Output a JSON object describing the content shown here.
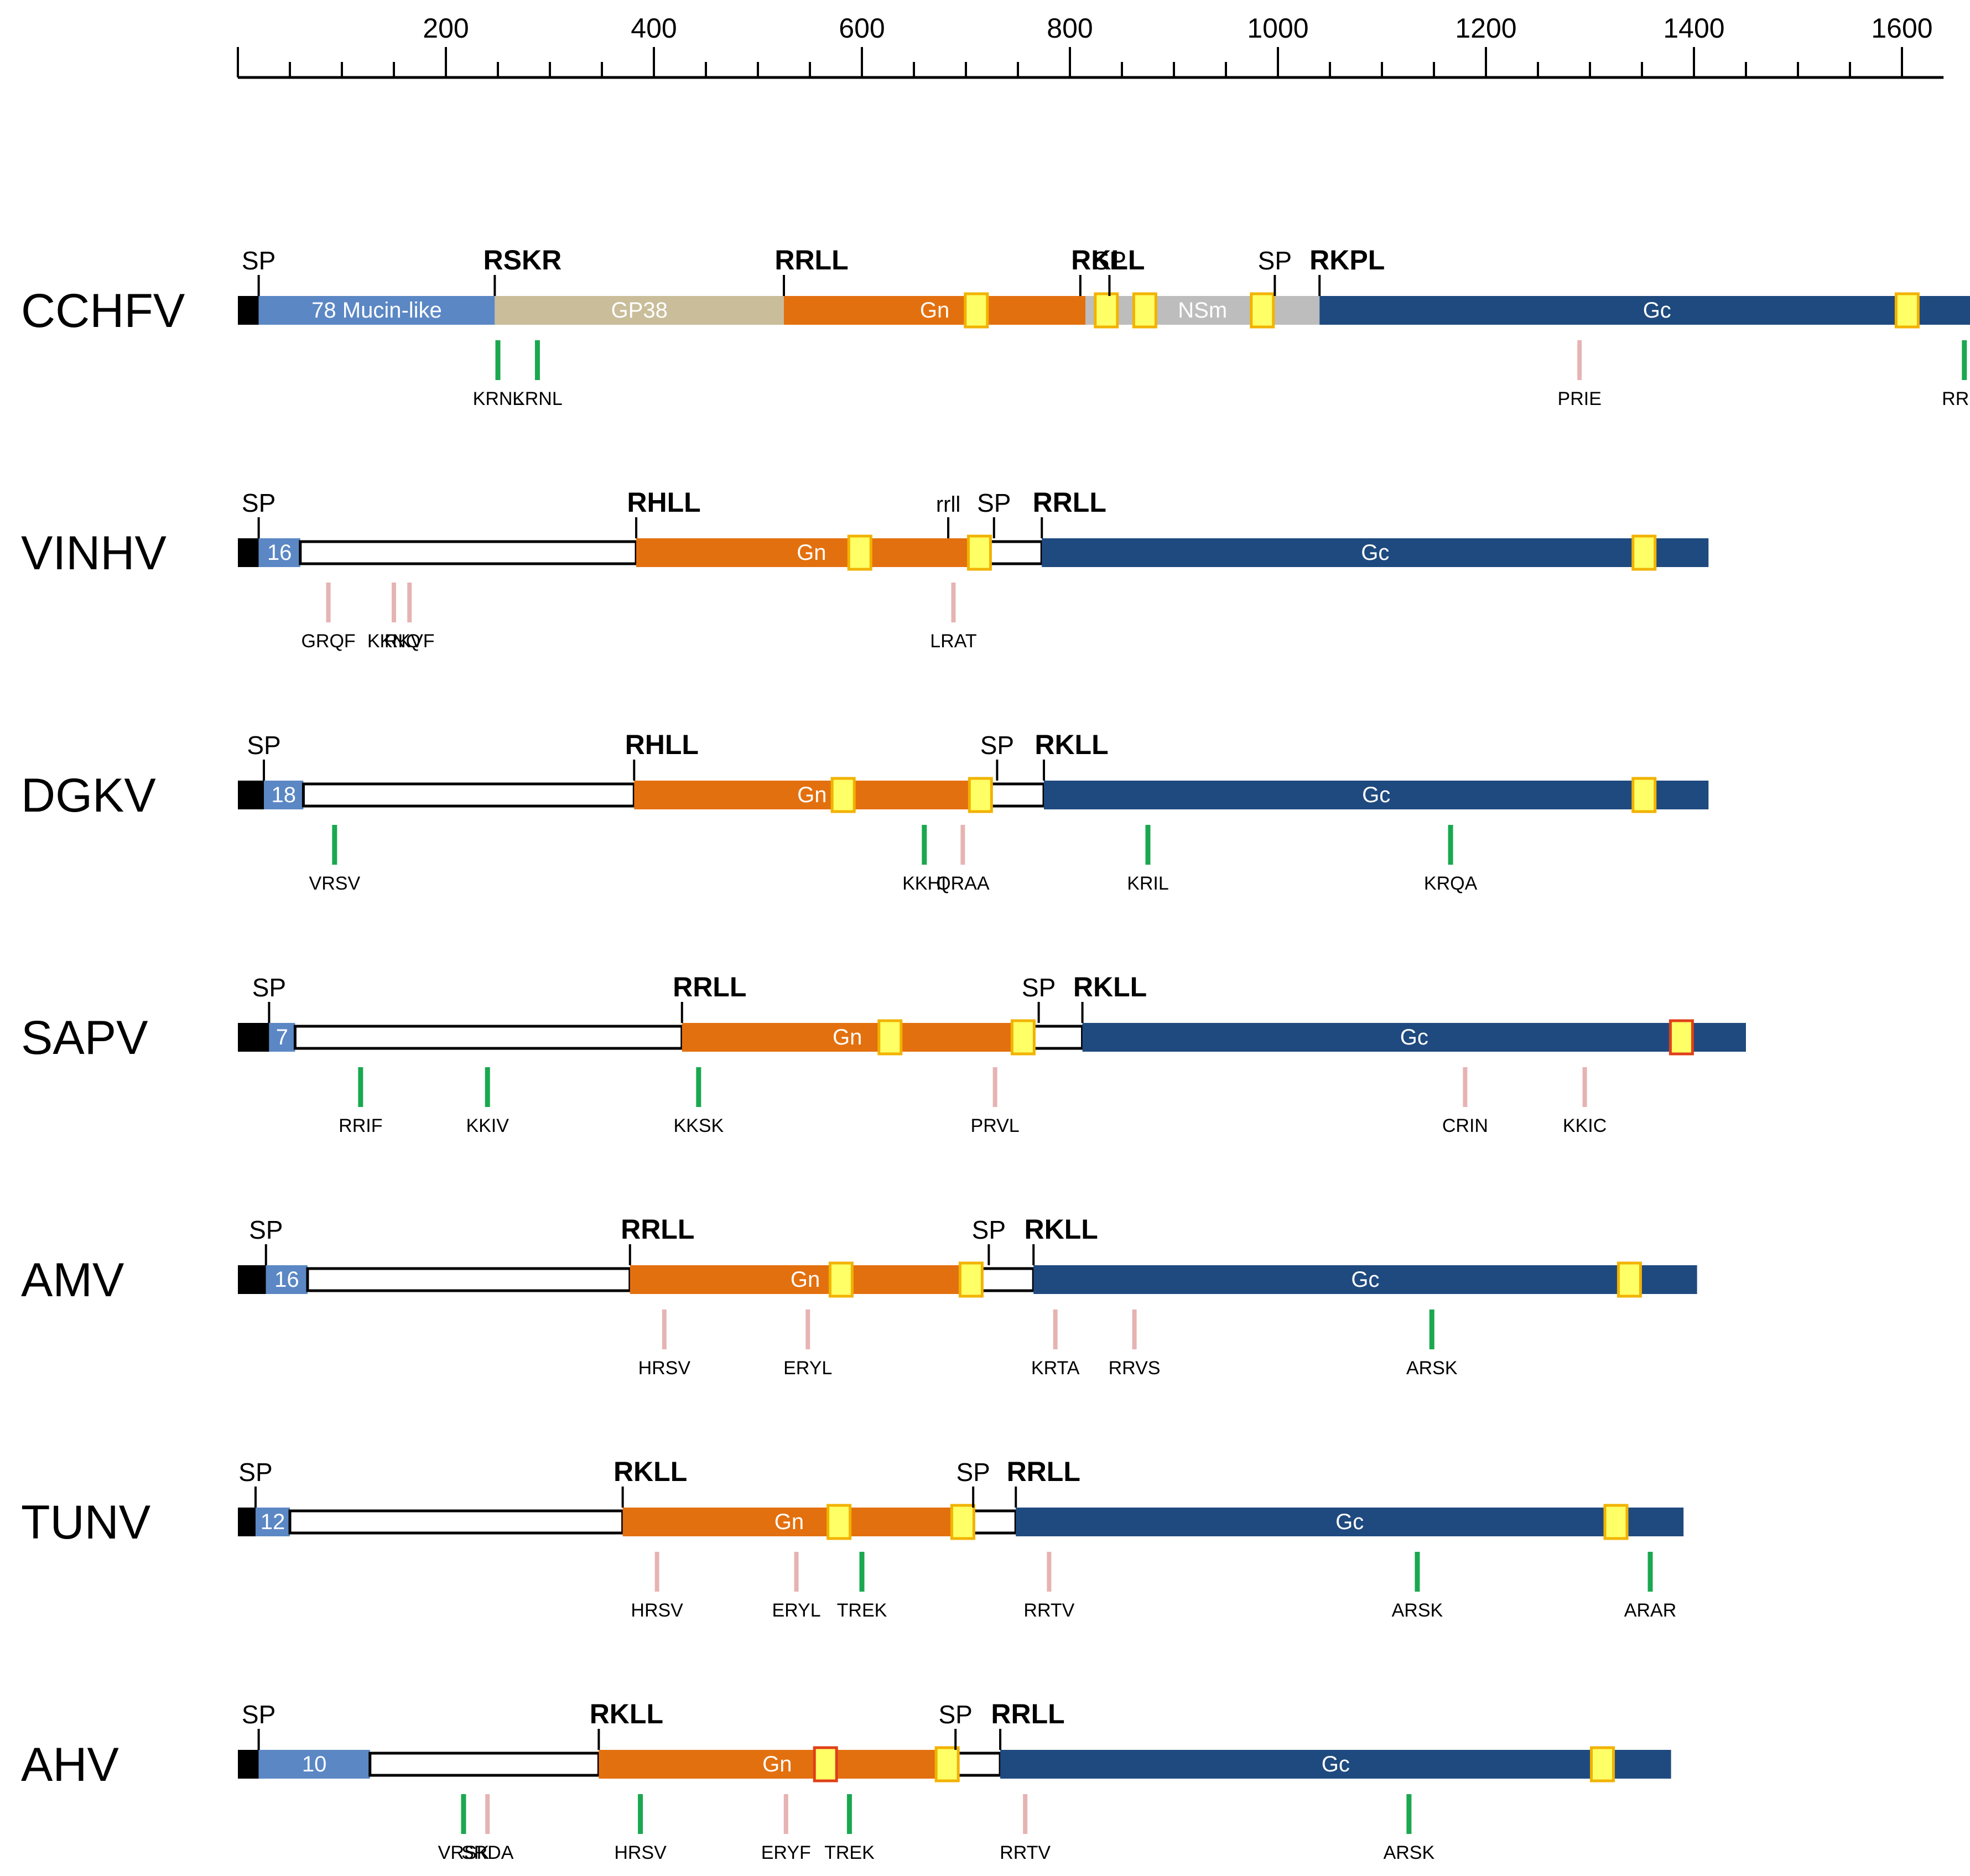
{
  "colors": {
    "sp_block": "#000000",
    "mucin": "#5b87c4",
    "gp38": "#c9bd9a",
    "gn": "#e3700f",
    "nsm": "#bdbdbd",
    "gc": "#1f4a7f",
    "tm_fill": "#ffff66",
    "tm_stroke": "#f2b200",
    "tm_stroke_alt": "#e0401a",
    "motif_green": "#1aa84f",
    "motif_pink": "#e6b3b3",
    "outline": "#000000"
  },
  "ruler": {
    "min": 0,
    "max": 1640,
    "tick_labels": [
      "200",
      "400",
      "600",
      "800",
      "1000",
      "1200",
      "1400",
      "1600"
    ],
    "tick_values": [
      200,
      400,
      600,
      800,
      1000,
      1200,
      1400,
      1600
    ],
    "minor_values": [
      50,
      100,
      150,
      250,
      300,
      350,
      450,
      500,
      550,
      650,
      700,
      750,
      850,
      900,
      950,
      1050,
      1100,
      1150,
      1250,
      1300,
      1350,
      1450,
      1500,
      1550
    ]
  },
  "viruses": [
    {
      "name": "CCHFV",
      "length": 1689,
      "segments": [
        {
          "type": "sp_block",
          "start": 0,
          "end": 20
        },
        {
          "type": "mucin",
          "start": 20,
          "end": 247,
          "label": "78 Mucin-like"
        },
        {
          "type": "gp38",
          "start": 247,
          "end": 525,
          "label": "GP38"
        },
        {
          "type": "gn",
          "start": 525,
          "end": 815,
          "label": "Gn"
        },
        {
          "type": "nsm",
          "start": 815,
          "end": 1040,
          "label": "NSm"
        },
        {
          "type": "gc",
          "start": 1040,
          "end": 1689,
          "label": "Gc"
        }
      ],
      "tm": [
        {
          "pos": 710,
          "style": "tm_stroke"
        },
        {
          "pos": 835,
          "style": "tm_stroke"
        },
        {
          "pos": 872,
          "style": "tm_stroke"
        },
        {
          "pos": 985,
          "style": "tm_stroke"
        },
        {
          "pos": 1605,
          "style": "tm_stroke"
        }
      ],
      "sites": [
        {
          "label": "SP",
          "pos": 20,
          "weight": "plain"
        },
        {
          "label": "RSKR",
          "pos": 247,
          "weight": "bold"
        },
        {
          "label": "RRLL",
          "pos": 525,
          "weight": "bold"
        },
        {
          "label": "RKLL",
          "pos": 810,
          "weight": "bold"
        },
        {
          "label": "SP",
          "pos": 838,
          "weight": "plain"
        },
        {
          "label": "SP",
          "pos": 997,
          "weight": "plain"
        },
        {
          "label": "RKPL",
          "pos": 1040,
          "weight": "bold"
        }
      ],
      "motifs": [
        {
          "label": "KRNL",
          "pos": 250,
          "color": "motif_green"
        },
        {
          "label": "KRNL",
          "pos": 288,
          "color": "motif_green"
        },
        {
          "label": "PRIE",
          "pos": 1290,
          "color": "motif_pink"
        },
        {
          "label": "RRIA",
          "pos": 1660,
          "color": "motif_green"
        }
      ]
    },
    {
      "name": "VINHV",
      "length": 1414,
      "segments": [
        {
          "type": "sp_block",
          "start": 0,
          "end": 20
        },
        {
          "type": "mucin",
          "start": 20,
          "end": 60,
          "label": "16"
        },
        {
          "type": "empty",
          "start": 60,
          "end": 383
        },
        {
          "type": "gn",
          "start": 383,
          "end": 720,
          "label": "Gn"
        },
        {
          "type": "empty",
          "start": 720,
          "end": 773
        },
        {
          "type": "gc",
          "start": 773,
          "end": 1414,
          "label": "Gc"
        }
      ],
      "tm": [
        {
          "pos": 598,
          "style": "tm_stroke"
        },
        {
          "pos": 713,
          "style": "tm_stroke"
        },
        {
          "pos": 1352,
          "style": "tm_stroke"
        }
      ],
      "sites": [
        {
          "label": "SP",
          "pos": 20,
          "weight": "plain"
        },
        {
          "label": "RHLL",
          "pos": 383,
          "weight": "bold"
        },
        {
          "label": "rrll",
          "pos": 683,
          "weight": "small"
        },
        {
          "label": "SP",
          "pos": 727,
          "weight": "plain"
        },
        {
          "label": "RRLL",
          "pos": 773,
          "weight": "bold"
        }
      ],
      "motifs": [
        {
          "label": "GRQF",
          "pos": 87,
          "color": "motif_pink"
        },
        {
          "label": "KKNQ",
          "pos": 150,
          "color": "motif_pink"
        },
        {
          "label": "RKVF",
          "pos": 165,
          "color": "motif_pink"
        },
        {
          "label": "LRAT",
          "pos": 688,
          "color": "motif_pink"
        }
      ]
    },
    {
      "name": "DGKV",
      "length": 1414,
      "segments": [
        {
          "type": "sp_block",
          "start": 0,
          "end": 25
        },
        {
          "type": "mucin",
          "start": 25,
          "end": 63,
          "label": "18"
        },
        {
          "type": "empty",
          "start": 63,
          "end": 381
        },
        {
          "type": "gn",
          "start": 381,
          "end": 723,
          "label": "Gn"
        },
        {
          "type": "empty",
          "start": 723,
          "end": 775
        },
        {
          "type": "gc",
          "start": 775,
          "end": 1414,
          "label": "Gc"
        }
      ],
      "tm": [
        {
          "pos": 582,
          "style": "tm_stroke"
        },
        {
          "pos": 714,
          "style": "tm_stroke"
        },
        {
          "pos": 1352,
          "style": "tm_stroke"
        }
      ],
      "sites": [
        {
          "label": "SP",
          "pos": 25,
          "weight": "plain"
        },
        {
          "label": "RHLL",
          "pos": 381,
          "weight": "bold"
        },
        {
          "label": "SP",
          "pos": 730,
          "weight": "plain"
        },
        {
          "label": "RKLL",
          "pos": 775,
          "weight": "bold"
        }
      ],
      "motifs": [
        {
          "label": "VRSV",
          "pos": 93,
          "color": "motif_green"
        },
        {
          "label": "KKHI",
          "pos": 660,
          "color": "motif_green"
        },
        {
          "label": "QRAA",
          "pos": 697,
          "color": "motif_pink"
        },
        {
          "label": "KRIL",
          "pos": 875,
          "color": "motif_green"
        },
        {
          "label": "KRQA",
          "pos": 1166,
          "color": "motif_green"
        }
      ]
    },
    {
      "name": "SAPV",
      "length": 1450,
      "segments": [
        {
          "type": "sp_block",
          "start": 0,
          "end": 30
        },
        {
          "type": "mucin",
          "start": 30,
          "end": 55,
          "label": "7"
        },
        {
          "type": "empty",
          "start": 55,
          "end": 427
        },
        {
          "type": "gn",
          "start": 427,
          "end": 745,
          "label": "Gn"
        },
        {
          "type": "empty",
          "start": 745,
          "end": 812
        },
        {
          "type": "gc",
          "start": 812,
          "end": 1450,
          "label": "Gc"
        }
      ],
      "tm": [
        {
          "pos": 627,
          "style": "tm_stroke"
        },
        {
          "pos": 755,
          "style": "tm_stroke"
        },
        {
          "pos": 1388,
          "style": "tm_stroke_alt"
        }
      ],
      "sites": [
        {
          "label": "SP",
          "pos": 30,
          "weight": "plain"
        },
        {
          "label": "RRLL",
          "pos": 427,
          "weight": "bold"
        },
        {
          "label": "SP",
          "pos": 770,
          "weight": "plain"
        },
        {
          "label": "RKLL",
          "pos": 812,
          "weight": "bold"
        }
      ],
      "motifs": [
        {
          "label": "RRIF",
          "pos": 118,
          "color": "motif_green"
        },
        {
          "label": "KKIV",
          "pos": 240,
          "color": "motif_green"
        },
        {
          "label": "KKSK",
          "pos": 443,
          "color": "motif_green"
        },
        {
          "label": "PRVL",
          "pos": 728,
          "color": "motif_pink"
        },
        {
          "label": "CRIN",
          "pos": 1180,
          "color": "motif_pink"
        },
        {
          "label": "KKIC",
          "pos": 1295,
          "color": "motif_pink"
        }
      ]
    },
    {
      "name": "AMV",
      "length": 1403,
      "segments": [
        {
          "type": "sp_block",
          "start": 0,
          "end": 27
        },
        {
          "type": "mucin",
          "start": 27,
          "end": 67,
          "label": "16"
        },
        {
          "type": "empty",
          "start": 67,
          "end": 377
        },
        {
          "type": "gn",
          "start": 377,
          "end": 714,
          "label": "Gn"
        },
        {
          "type": "empty",
          "start": 714,
          "end": 765
        },
        {
          "type": "gc",
          "start": 765,
          "end": 1403,
          "label": "Gc"
        }
      ],
      "tm": [
        {
          "pos": 580,
          "style": "tm_stroke"
        },
        {
          "pos": 705,
          "style": "tm_stroke"
        },
        {
          "pos": 1338,
          "style": "tm_stroke"
        }
      ],
      "sites": [
        {
          "label": "SP",
          "pos": 27,
          "weight": "plain"
        },
        {
          "label": "RRLL",
          "pos": 377,
          "weight": "bold"
        },
        {
          "label": "SP",
          "pos": 722,
          "weight": "plain"
        },
        {
          "label": "RKLL",
          "pos": 765,
          "weight": "bold"
        }
      ],
      "motifs": [
        {
          "label": "HRSV",
          "pos": 410,
          "color": "motif_pink"
        },
        {
          "label": "ERYL",
          "pos": 548,
          "color": "motif_pink"
        },
        {
          "label": "KRTA",
          "pos": 786,
          "color": "motif_pink"
        },
        {
          "label": "RRVS",
          "pos": 862,
          "color": "motif_pink"
        },
        {
          "label": "ARSK",
          "pos": 1148,
          "color": "motif_green"
        }
      ]
    },
    {
      "name": "TUNV",
      "length": 1390,
      "segments": [
        {
          "type": "sp_block",
          "start": 0,
          "end": 17
        },
        {
          "type": "mucin",
          "start": 17,
          "end": 50,
          "label": "12"
        },
        {
          "type": "empty",
          "start": 50,
          "end": 370
        },
        {
          "type": "gn",
          "start": 370,
          "end": 690,
          "label": "Gn"
        },
        {
          "type": "empty",
          "start": 690,
          "end": 748
        },
        {
          "type": "gc",
          "start": 748,
          "end": 1390,
          "label": "Gc"
        }
      ],
      "tm": [
        {
          "pos": 578,
          "style": "tm_stroke"
        },
        {
          "pos": 697,
          "style": "tm_stroke"
        },
        {
          "pos": 1325,
          "style": "tm_stroke"
        }
      ],
      "sites": [
        {
          "label": "SP",
          "pos": 17,
          "weight": "plain"
        },
        {
          "label": "RKLL",
          "pos": 370,
          "weight": "bold"
        },
        {
          "label": "SP",
          "pos": 707,
          "weight": "plain"
        },
        {
          "label": "RRLL",
          "pos": 748,
          "weight": "bold"
        }
      ],
      "motifs": [
        {
          "label": "HRSV",
          "pos": 403,
          "color": "motif_pink"
        },
        {
          "label": "ERYL",
          "pos": 537,
          "color": "motif_pink"
        },
        {
          "label": "TREK",
          "pos": 600,
          "color": "motif_green"
        },
        {
          "label": "RRTV",
          "pos": 780,
          "color": "motif_pink"
        },
        {
          "label": "ARSK",
          "pos": 1134,
          "color": "motif_green"
        },
        {
          "label": "ARAR",
          "pos": 1358,
          "color": "motif_green"
        }
      ]
    },
    {
      "name": "AHV",
      "length": 1378,
      "segments": [
        {
          "type": "sp_block",
          "start": 0,
          "end": 20
        },
        {
          "type": "mucin",
          "start": 20,
          "end": 127,
          "label": "10"
        },
        {
          "type": "empty",
          "start": 127,
          "end": 347
        },
        {
          "type": "gn",
          "start": 347,
          "end": 690,
          "label": "Gn"
        },
        {
          "type": "empty",
          "start": 690,
          "end": 733
        },
        {
          "type": "gc",
          "start": 733,
          "end": 1378,
          "label": "Gc"
        }
      ],
      "tm": [
        {
          "pos": 565,
          "style": "tm_stroke_alt"
        },
        {
          "pos": 682,
          "style": "tm_stroke"
        },
        {
          "pos": 1312,
          "style": "tm_stroke"
        }
      ],
      "sites": [
        {
          "label": "SP",
          "pos": 20,
          "weight": "plain"
        },
        {
          "label": "RKLL",
          "pos": 347,
          "weight": "bold"
        },
        {
          "label": "SP",
          "pos": 690,
          "weight": "plain"
        },
        {
          "label": "RRLL",
          "pos": 733,
          "weight": "bold"
        }
      ],
      "motifs": [
        {
          "label": "VRSK",
          "pos": 217,
          "color": "motif_green"
        },
        {
          "label": "SRDA",
          "pos": 240,
          "color": "motif_pink"
        },
        {
          "label": "HRSV",
          "pos": 387,
          "color": "motif_green"
        },
        {
          "label": "ERYF",
          "pos": 527,
          "color": "motif_pink"
        },
        {
          "label": "TREK",
          "pos": 588,
          "color": "motif_green"
        },
        {
          "label": "RRTV",
          "pos": 757,
          "color": "motif_pink"
        },
        {
          "label": "ARSK",
          "pos": 1126,
          "color": "motif_green"
        }
      ]
    }
  ]
}
